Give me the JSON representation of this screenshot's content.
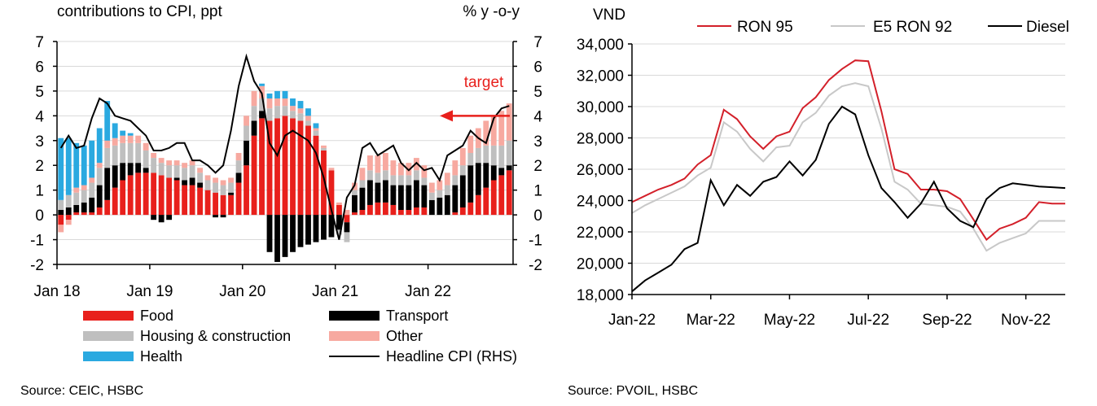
{
  "source_left": "Source:  CEIC, HSBC",
  "source_right": "Source: PVOIL, HSBC",
  "chart_data": [
    {
      "type": "bar",
      "subtype": "stacked-bar-with-line",
      "title": "contributions to CPI, ppt",
      "right_title": "% y -o-y",
      "annotation": "target",
      "target_value": 4,
      "ylim": [
        -2,
        7
      ],
      "y_ticks": [
        "7",
        "6",
        "5",
        "4",
        "3",
        "2",
        "1",
        "0",
        "-1",
        "-2"
      ],
      "x_tick_labels": [
        "Jan 18",
        "Jan 19",
        "Jan 20",
        "Jan 21",
        "Jan 22"
      ],
      "x_tick_index": [
        0,
        12,
        24,
        36,
        48
      ],
      "n_months": 59,
      "colors": {
        "food": "#e8201c",
        "transport": "#000000",
        "housing": "#bfbfbf",
        "other": "#f7a9a0",
        "health": "#2aa9e0",
        "headline": "#000000",
        "target": "#e8201c",
        "grid": "#d9d9d9"
      },
      "legend": [
        {
          "key": "food",
          "label": "Food",
          "kind": "bar"
        },
        {
          "key": "transport",
          "label": "Transport",
          "kind": "bar"
        },
        {
          "key": "housing",
          "label": "Housing & construction",
          "kind": "bar"
        },
        {
          "key": "other",
          "label": "Other",
          "kind": "bar"
        },
        {
          "key": "health",
          "label": "Health",
          "kind": "bar"
        },
        {
          "key": "headline",
          "label": "Headline CPI (RHS)",
          "kind": "line"
        }
      ],
      "series": {
        "food": [
          -0.4,
          -0.2,
          0.1,
          0.1,
          0.1,
          0.3,
          0.6,
          1.1,
          1.4,
          1.6,
          1.7,
          1.7,
          1.7,
          1.6,
          1.5,
          1.4,
          1.2,
          1.2,
          1.1,
          1.0,
          0.9,
          0.8,
          0.8,
          1.3,
          2.0,
          3.2,
          3.9,
          3.8,
          3.9,
          4.0,
          3.9,
          3.8,
          3.6,
          3.2,
          2.6,
          1.8,
          0.4,
          -0.3,
          0.1,
          0.2,
          0.4,
          0.5,
          0.5,
          0.4,
          0.2,
          0.2,
          0.3,
          0.3,
          0.0,
          0.0,
          0.0,
          0.1,
          0.3,
          0.5,
          0.8,
          1.1,
          1.4,
          1.6,
          1.8
        ],
        "transport": [
          0.2,
          0.3,
          0.3,
          0.4,
          0.6,
          0.9,
          1.3,
          0.9,
          0.7,
          0.5,
          0.4,
          0.2,
          -0.2,
          -0.3,
          -0.2,
          0.1,
          0.2,
          0.3,
          0.2,
          0.0,
          -0.1,
          -0.1,
          0.1,
          0.4,
          1.0,
          0.6,
          0.3,
          -1.5,
          -1.9,
          -1.7,
          -1.5,
          -1.3,
          -1.2,
          -1.1,
          -1.0,
          -0.9,
          -0.6,
          -0.4,
          0.7,
          0.9,
          1.0,
          0.8,
          0.9,
          0.8,
          1.0,
          1.0,
          1.1,
          0.9,
          0.6,
          0.7,
          0.8,
          1.1,
          1.3,
          1.5,
          1.3,
          1.0,
          0.6,
          0.3,
          0.2
        ],
        "housing": [
          0.4,
          0.5,
          0.5,
          0.5,
          0.6,
          0.7,
          0.8,
          0.8,
          0.8,
          0.8,
          0.8,
          0.7,
          0.6,
          0.5,
          0.5,
          0.5,
          0.5,
          0.5,
          0.4,
          0.4,
          0.4,
          0.4,
          0.4,
          0.5,
          0.6,
          0.6,
          0.5,
          0.5,
          0.5,
          0.4,
          0.3,
          0.3,
          0.2,
          0.2,
          0.1,
          0.0,
          -0.2,
          -0.4,
          0.2,
          0.3,
          0.4,
          0.4,
          0.4,
          0.4,
          0.4,
          0.4,
          0.4,
          0.3,
          0.3,
          0.3,
          0.4,
          0.4,
          0.4,
          0.5,
          0.6,
          0.7,
          0.8,
          0.9,
          1.0
        ],
        "other": [
          -0.3,
          -0.2,
          0.2,
          0.2,
          0.2,
          0.2,
          0.3,
          0.3,
          0.3,
          0.3,
          0.3,
          0.3,
          0.2,
          0.2,
          0.2,
          0.2,
          0.2,
          0.2,
          0.2,
          0.2,
          0.2,
          0.2,
          0.2,
          0.3,
          0.4,
          0.6,
          0.5,
          0.4,
          0.3,
          0.3,
          0.2,
          0.2,
          0.2,
          0.1,
          0.1,
          0.1,
          0.1,
          0.2,
          0.3,
          0.5,
          0.6,
          0.7,
          0.7,
          0.6,
          0.5,
          0.5,
          0.5,
          0.5,
          0.4,
          0.4,
          0.5,
          0.6,
          0.7,
          0.7,
          0.8,
          1.0,
          1.2,
          1.4,
          1.5
        ],
        "health": [
          2.5,
          2.3,
          1.8,
          1.6,
          1.5,
          1.4,
          1.6,
          0.6,
          0.2,
          0.1,
          0.0,
          0.0,
          0.0,
          0.0,
          0.0,
          0.0,
          0.0,
          0.0,
          0.0,
          0.0,
          0.0,
          0.0,
          0.0,
          0.0,
          0.0,
          0.0,
          0.1,
          0.2,
          0.3,
          0.3,
          0.3,
          0.3,
          0.3,
          0.2,
          0.0,
          0.0,
          0.0,
          0.0,
          0.0,
          0.0,
          0.0,
          0.0,
          0.0,
          0.0,
          0.0,
          0.0,
          0.0,
          0.0,
          0.0,
          0.0,
          0.0,
          0.0,
          0.0,
          0.0,
          0.0,
          0.0,
          0.0,
          0.0,
          0.0
        ],
        "headline": [
          2.7,
          3.2,
          2.7,
          2.8,
          3.9,
          4.7,
          4.5,
          4.0,
          3.9,
          3.8,
          3.5,
          3.2,
          2.6,
          2.6,
          2.7,
          2.9,
          2.9,
          2.2,
          2.2,
          2.0,
          1.7,
          2.0,
          3.4,
          5.2,
          6.4,
          5.4,
          4.9,
          2.9,
          2.4,
          3.2,
          3.4,
          3.2,
          3.0,
          2.5,
          1.5,
          0.2,
          -1.0,
          0.7,
          1.2,
          2.7,
          2.9,
          2.4,
          2.6,
          2.8,
          2.1,
          1.8,
          2.1,
          1.8,
          1.9,
          1.4,
          2.4,
          2.6,
          2.8,
          3.4,
          3.1,
          2.9,
          3.9,
          4.3,
          4.4
        ]
      }
    },
    {
      "type": "line",
      "title": "VND",
      "ylim": [
        18000,
        34000
      ],
      "y_ticks": [
        "34,000",
        "32,000",
        "30,000",
        "28,000",
        "26,000",
        "24,000",
        "22,000",
        "20,000",
        "18,000"
      ],
      "x_tick_labels": [
        "Jan-22",
        "Mar-22",
        "May-22",
        "Jul-22",
        "Sep-22",
        "Nov-22"
      ],
      "x_tick_index": [
        0,
        6,
        12,
        18,
        24,
        30
      ],
      "n_points": 34,
      "colors": {
        "RON 95": "#d3202a",
        "E5 RON 92": "#c8c8c8",
        "Diesel": "#000000",
        "grid": "#d9d9d9"
      },
      "series": [
        {
          "name": "RON 95",
          "values": [
            23900,
            24300,
            24700,
            25000,
            25400,
            26300,
            26900,
            29800,
            29200,
            28100,
            27300,
            28100,
            28400,
            29900,
            30600,
            31700,
            32400,
            32950,
            32900,
            29700,
            26000,
            25700,
            24700,
            24700,
            24600,
            24100,
            22800,
            21500,
            22200,
            22500,
            22900,
            23900,
            23800,
            23800
          ]
        },
        {
          "name": "E5 RON 92",
          "values": [
            23200,
            23700,
            24100,
            24500,
            24900,
            25600,
            26100,
            29000,
            28400,
            27300,
            26500,
            27400,
            27500,
            29000,
            29600,
            30700,
            31300,
            31500,
            31300,
            28600,
            25200,
            24700,
            23800,
            23700,
            23600,
            23300,
            22200,
            20800,
            21300,
            21600,
            21900,
            22700,
            22700,
            22700
          ]
        },
        {
          "name": "Diesel",
          "values": [
            18200,
            18900,
            19400,
            19900,
            20900,
            21300,
            25300,
            23700,
            25000,
            24300,
            25200,
            25500,
            26500,
            25600,
            26600,
            28900,
            30000,
            29500,
            26900,
            24800,
            23900,
            22900,
            23800,
            25200,
            23500,
            22700,
            22300,
            24100,
            24800,
            25100,
            25000,
            24900,
            24850,
            24800
          ]
        }
      ]
    }
  ]
}
